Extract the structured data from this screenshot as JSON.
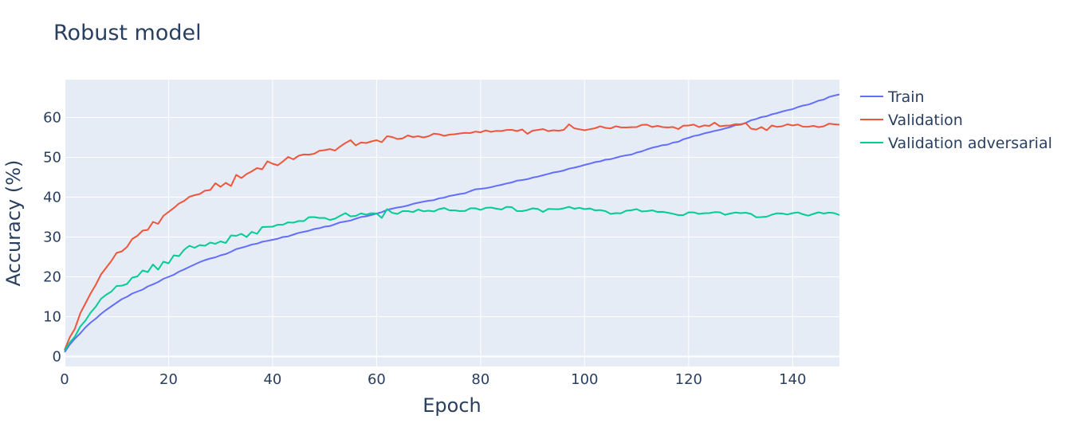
{
  "chart_data": {
    "type": "line",
    "title": "Robust model",
    "xlabel": "Epoch",
    "ylabel": "Accuracy (%)",
    "xlim": [
      0,
      149
    ],
    "ylim": [
      -2.5,
      69.5
    ],
    "x_ticks": [
      0,
      20,
      40,
      60,
      80,
      100,
      120,
      140
    ],
    "y_ticks": [
      0,
      10,
      20,
      30,
      40,
      50,
      60
    ],
    "grid": true,
    "legend_position": "right",
    "plot_bg": "#e5ecf6",
    "series": [
      {
        "name": "Train",
        "color": "#636efa",
        "anchors": [
          [
            0,
            1.1
          ],
          [
            1,
            3.0
          ],
          [
            2,
            4.5
          ],
          [
            3,
            5.8
          ],
          [
            4,
            7.3
          ],
          [
            5,
            8.5
          ],
          [
            6,
            9.5
          ],
          [
            7,
            10.7
          ],
          [
            8,
            11.7
          ],
          [
            9,
            12.6
          ],
          [
            10,
            13.5
          ],
          [
            12,
            15.0
          ],
          [
            14,
            16.3
          ],
          [
            16,
            17.6
          ],
          [
            18,
            18.7
          ],
          [
            20,
            20.0
          ],
          [
            22,
            21.3
          ],
          [
            24,
            22.5
          ],
          [
            26,
            23.7
          ],
          [
            28,
            24.6
          ],
          [
            30,
            25.4
          ],
          [
            32,
            26.3
          ],
          [
            34,
            27.3
          ],
          [
            36,
            28.1
          ],
          [
            38,
            28.8
          ],
          [
            40,
            29.3
          ],
          [
            42,
            30.0
          ],
          [
            44,
            30.6
          ],
          [
            46,
            31.3
          ],
          [
            48,
            32.0
          ],
          [
            50,
            32.6
          ],
          [
            52,
            33.2
          ],
          [
            54,
            33.9
          ],
          [
            56,
            34.6
          ],
          [
            58,
            35.2
          ],
          [
            60,
            35.9
          ],
          [
            62,
            36.8
          ],
          [
            64,
            37.4
          ],
          [
            66,
            37.9
          ],
          [
            68,
            38.6
          ],
          [
            70,
            39.1
          ],
          [
            72,
            39.7
          ],
          [
            74,
            40.3
          ],
          [
            76,
            40.8
          ],
          [
            78,
            41.5
          ],
          [
            80,
            42.1
          ],
          [
            82,
            42.5
          ],
          [
            84,
            43.1
          ],
          [
            86,
            43.7
          ],
          [
            88,
            44.3
          ],
          [
            90,
            44.9
          ],
          [
            92,
            45.5
          ],
          [
            94,
            46.2
          ],
          [
            96,
            46.7
          ],
          [
            98,
            47.4
          ],
          [
            100,
            48.1
          ],
          [
            102,
            48.8
          ],
          [
            104,
            49.4
          ],
          [
            106,
            49.9
          ],
          [
            108,
            50.5
          ],
          [
            110,
            51.2
          ],
          [
            112,
            52.0
          ],
          [
            114,
            52.7
          ],
          [
            116,
            53.2
          ],
          [
            118,
            53.9
          ],
          [
            120,
            54.9
          ],
          [
            122,
            55.6
          ],
          [
            124,
            56.3
          ],
          [
            126,
            56.9
          ],
          [
            128,
            57.6
          ],
          [
            130,
            58.2
          ],
          [
            132,
            59.3
          ],
          [
            134,
            60.1
          ],
          [
            136,
            60.8
          ],
          [
            138,
            61.5
          ],
          [
            140,
            62.1
          ],
          [
            142,
            63.0
          ],
          [
            144,
            63.7
          ],
          [
            146,
            64.5
          ],
          [
            148,
            65.5
          ],
          [
            149,
            65.8
          ]
        ],
        "noise": 0.18
      },
      {
        "name": "Validation",
        "color": "#ef553b",
        "anchors": [
          [
            0,
            1.6
          ],
          [
            1,
            4.8
          ],
          [
            2,
            7.0
          ],
          [
            3,
            10.8
          ],
          [
            4,
            13.3
          ],
          [
            5,
            15.8
          ],
          [
            6,
            18.0
          ],
          [
            7,
            20.6
          ],
          [
            8,
            22.3
          ],
          [
            9,
            24.0
          ],
          [
            10,
            26.0
          ],
          [
            12,
            27.5
          ],
          [
            13,
            29.5
          ],
          [
            14,
            30.3
          ],
          [
            15,
            31.6
          ],
          [
            16,
            31.8
          ],
          [
            17,
            33.8
          ],
          [
            18,
            33.3
          ],
          [
            19,
            35.3
          ],
          [
            20,
            36.3
          ],
          [
            22,
            38.4
          ],
          [
            24,
            40.1
          ],
          [
            26,
            40.8
          ],
          [
            28,
            41.8
          ],
          [
            29,
            43.5
          ],
          [
            30,
            42.6
          ],
          [
            31,
            43.6
          ],
          [
            32,
            42.8
          ],
          [
            33,
            45.6
          ],
          [
            34,
            44.8
          ],
          [
            35,
            45.8
          ],
          [
            37,
            47.3
          ],
          [
            38,
            47.0
          ],
          [
            39,
            49.0
          ],
          [
            40,
            48.4
          ],
          [
            41,
            48.0
          ],
          [
            42,
            49.0
          ],
          [
            43,
            50.1
          ],
          [
            44,
            49.5
          ],
          [
            45,
            50.4
          ],
          [
            48,
            50.9
          ],
          [
            50,
            51.8
          ],
          [
            52,
            51.7
          ],
          [
            54,
            53.6
          ],
          [
            55,
            54.3
          ],
          [
            56,
            53.0
          ],
          [
            58,
            53.6
          ],
          [
            60,
            54.3
          ],
          [
            61,
            53.8
          ],
          [
            62,
            55.3
          ],
          [
            64,
            54.6
          ],
          [
            66,
            55.5
          ],
          [
            68,
            55.3
          ],
          [
            70,
            55.3
          ],
          [
            72,
            55.8
          ],
          [
            74,
            55.7
          ],
          [
            76,
            56.0
          ],
          [
            78,
            56.1
          ],
          [
            80,
            56.3
          ],
          [
            82,
            56.4
          ],
          [
            84,
            56.6
          ],
          [
            86,
            56.9
          ],
          [
            88,
            57.0
          ],
          [
            89,
            55.9
          ],
          [
            90,
            56.7
          ],
          [
            92,
            57.1
          ],
          [
            94,
            56.8
          ],
          [
            96,
            56.9
          ],
          [
            97,
            58.3
          ],
          [
            98,
            57.3
          ],
          [
            100,
            56.8
          ],
          [
            102,
            57.3
          ],
          [
            104,
            57.4
          ],
          [
            106,
            57.8
          ],
          [
            108,
            57.5
          ],
          [
            110,
            57.6
          ],
          [
            112,
            58.2
          ],
          [
            114,
            57.9
          ],
          [
            116,
            57.5
          ],
          [
            118,
            57.1
          ],
          [
            120,
            58.0
          ],
          [
            122,
            57.6
          ],
          [
            124,
            57.9
          ],
          [
            125,
            58.7
          ],
          [
            126,
            57.8
          ],
          [
            128,
            58.0
          ],
          [
            130,
            58.3
          ],
          [
            131,
            58.6
          ],
          [
            132,
            57.2
          ],
          [
            134,
            57.6
          ],
          [
            135,
            56.8
          ],
          [
            136,
            58.0
          ],
          [
            138,
            57.8
          ],
          [
            140,
            58.0
          ],
          [
            142,
            57.7
          ],
          [
            144,
            57.9
          ],
          [
            146,
            57.8
          ],
          [
            148,
            58.3
          ],
          [
            149,
            58.2
          ]
        ],
        "noise": 0.45
      },
      {
        "name": "Validation adversarial",
        "color": "#00cc96",
        "anchors": [
          [
            0,
            1.5
          ],
          [
            1,
            3.5
          ],
          [
            2,
            5.0
          ],
          [
            3,
            7.5
          ],
          [
            4,
            9.0
          ],
          [
            5,
            11.0
          ],
          [
            6,
            12.5
          ],
          [
            7,
            14.5
          ],
          [
            8,
            15.5
          ],
          [
            9,
            16.3
          ],
          [
            10,
            17.7
          ],
          [
            12,
            18.2
          ],
          [
            13,
            19.8
          ],
          [
            14,
            20.1
          ],
          [
            15,
            21.6
          ],
          [
            16,
            21.2
          ],
          [
            17,
            23.1
          ],
          [
            18,
            21.8
          ],
          [
            19,
            23.8
          ],
          [
            20,
            23.4
          ],
          [
            21,
            25.4
          ],
          [
            22,
            25.2
          ],
          [
            23,
            26.8
          ],
          [
            24,
            27.8
          ],
          [
            25,
            27.3
          ],
          [
            27,
            27.8
          ],
          [
            28,
            28.6
          ],
          [
            29,
            28.3
          ],
          [
            30,
            28.9
          ],
          [
            31,
            28.5
          ],
          [
            32,
            30.4
          ],
          [
            33,
            30.3
          ],
          [
            34,
            30.8
          ],
          [
            35,
            30.0
          ],
          [
            36,
            31.3
          ],
          [
            37,
            30.8
          ],
          [
            38,
            32.5
          ],
          [
            40,
            32.6
          ],
          [
            42,
            33.1
          ],
          [
            44,
            33.6
          ],
          [
            46,
            34.0
          ],
          [
            48,
            35.0
          ],
          [
            50,
            34.8
          ],
          [
            52,
            34.6
          ],
          [
            54,
            36.0
          ],
          [
            56,
            35.3
          ],
          [
            58,
            35.6
          ],
          [
            60,
            35.9
          ],
          [
            61,
            34.8
          ],
          [
            62,
            37.0
          ],
          [
            64,
            35.8
          ],
          [
            66,
            36.5
          ],
          [
            68,
            36.9
          ],
          [
            70,
            36.6
          ],
          [
            72,
            37.0
          ],
          [
            74,
            36.7
          ],
          [
            76,
            36.5
          ],
          [
            78,
            37.2
          ],
          [
            80,
            36.8
          ],
          [
            82,
            37.4
          ],
          [
            84,
            36.9
          ],
          [
            86,
            37.5
          ],
          [
            88,
            36.5
          ],
          [
            90,
            37.2
          ],
          [
            92,
            36.3
          ],
          [
            94,
            37.0
          ],
          [
            96,
            37.2
          ],
          [
            98,
            37.1
          ],
          [
            100,
            37.0
          ],
          [
            102,
            36.7
          ],
          [
            104,
            36.5
          ],
          [
            106,
            36.0
          ],
          [
            108,
            36.6
          ],
          [
            110,
            37.0
          ],
          [
            112,
            36.5
          ],
          [
            114,
            36.3
          ],
          [
            116,
            36.1
          ],
          [
            118,
            35.5
          ],
          [
            120,
            36.2
          ],
          [
            122,
            35.8
          ],
          [
            124,
            36.0
          ],
          [
            126,
            36.2
          ],
          [
            128,
            35.9
          ],
          [
            130,
            36.0
          ],
          [
            132,
            35.8
          ],
          [
            134,
            35.0
          ],
          [
            136,
            35.6
          ],
          [
            138,
            35.9
          ],
          [
            140,
            36.0
          ],
          [
            142,
            35.7
          ],
          [
            144,
            35.8
          ],
          [
            146,
            35.9
          ],
          [
            148,
            36.0
          ],
          [
            149,
            35.5
          ]
        ],
        "noise": 0.5
      }
    ]
  }
}
